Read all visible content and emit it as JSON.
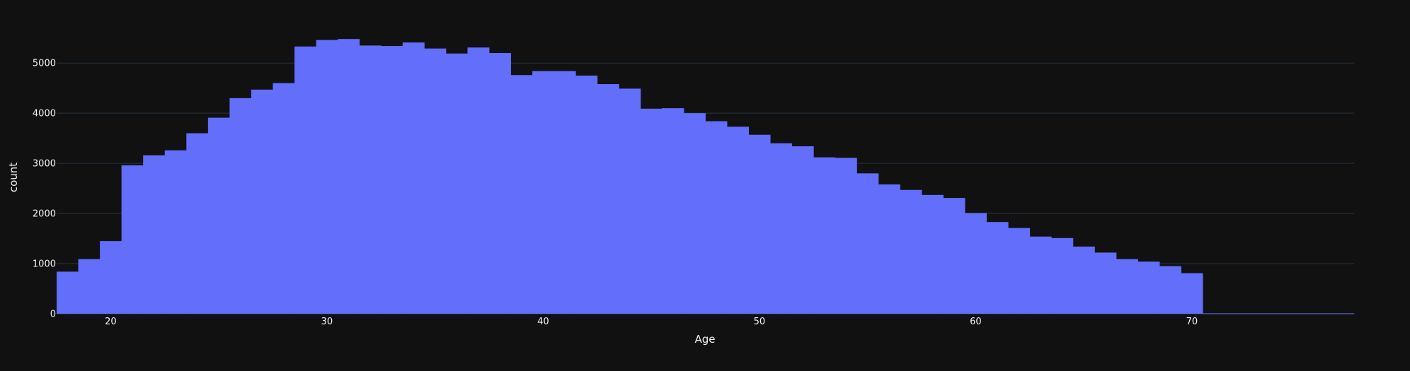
{
  "chart_data": {
    "type": "bar",
    "title": "",
    "xlabel": "Age",
    "ylabel": "count",
    "bar_color": "#636efa",
    "background": "#111111",
    "grid": true,
    "xlim": [
      17.5,
      77.5
    ],
    "ylim": [
      0,
      5750
    ],
    "xticks": [
      20,
      30,
      40,
      50,
      60,
      70
    ],
    "yticks": [
      0,
      1000,
      2000,
      3000,
      4000,
      5000
    ],
    "bin_start": 17.5,
    "bin_width": 1,
    "values": [
      840,
      1090,
      1450,
      2960,
      3160,
      3260,
      3600,
      3910,
      4300,
      4470,
      4600,
      5330,
      5460,
      5480,
      5350,
      5340,
      5410,
      5290,
      5190,
      5310,
      5200,
      4760,
      4840,
      4840,
      4750,
      4580,
      4490,
      4090,
      4100,
      4000,
      3840,
      3730,
      3570,
      3400,
      3340,
      3120,
      3110,
      2800,
      2580,
      2470,
      2370,
      2310,
      2010,
      1830,
      1710,
      1540,
      1510,
      1340,
      1220,
      1090,
      1040,
      950,
      810,
      0,
      0,
      0,
      0,
      0,
      0,
      0
    ]
  }
}
